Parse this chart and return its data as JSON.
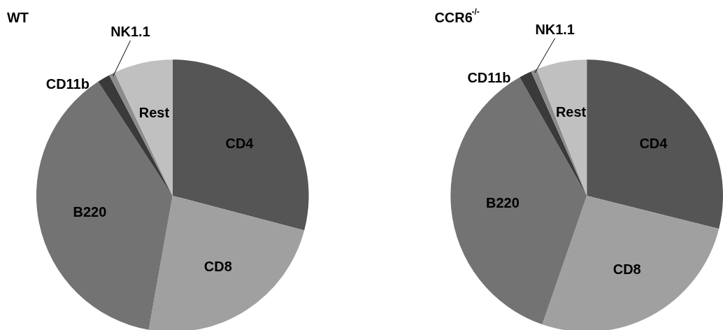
{
  "chart_data": [
    {
      "type": "pie",
      "title": "WT",
      "categories": [
        "CD4",
        "CD8",
        "B220",
        "CD11b",
        "NK1.1",
        "Rest"
      ],
      "values": [
        29.1,
        23.7,
        38.0,
        1.5,
        0.7,
        7.0
      ],
      "colors": [
        "#555555",
        "#a0a0a0",
        "#737373",
        "#3a3a3a",
        "#8c8c8c",
        "#c0c0c0"
      ],
      "legend": false
    },
    {
      "type": "pie",
      "title": "CCR6$^{-/-}$",
      "categories": [
        "CD4",
        "CD8",
        "B220",
        "CD11b",
        "NK1.1",
        "Rest"
      ],
      "values": [
        28.9,
        26.4,
        36.5,
        1.5,
        0.7,
        6.0
      ],
      "colors": [
        "#555555",
        "#a0a0a0",
        "#737373",
        "#3a3a3a",
        "#8c8c8c",
        "#c0c0c0"
      ],
      "legend": false
    }
  ]
}
